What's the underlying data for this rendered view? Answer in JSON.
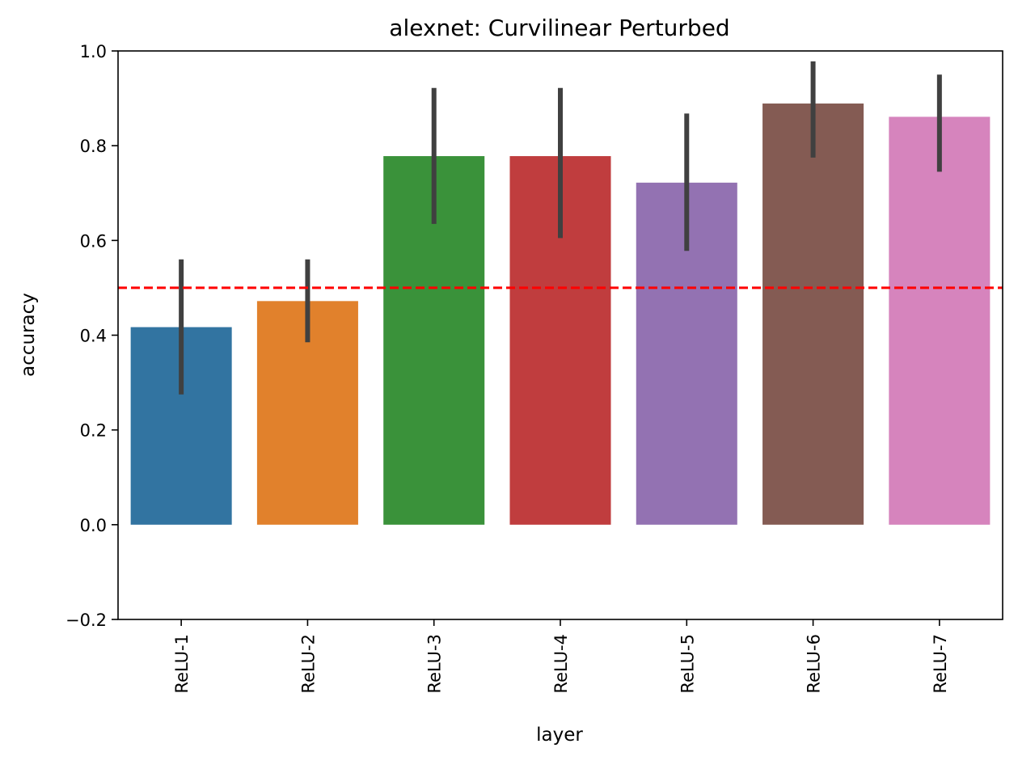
{
  "chart_data": {
    "type": "bar",
    "title": "alexnet: Curvilinear Perturbed",
    "xlabel": "layer",
    "ylabel": "accuracy",
    "ylim": [
      -0.2,
      1.0
    ],
    "yticks": [
      "−0.2",
      "0.0",
      "0.2",
      "0.4",
      "0.6",
      "0.8",
      "1.0"
    ],
    "categories": [
      "ReLU-1",
      "ReLU-2",
      "ReLU-3",
      "ReLU-4",
      "ReLU-5",
      "ReLU-6",
      "ReLU-7"
    ],
    "values": [
      0.417,
      0.472,
      0.778,
      0.778,
      0.722,
      0.889,
      0.861
    ],
    "error_low": [
      0.275,
      0.385,
      0.635,
      0.605,
      0.578,
      0.775,
      0.745
    ],
    "error_high": [
      0.56,
      0.56,
      0.922,
      0.922,
      0.868,
      0.978,
      0.95
    ],
    "colors": [
      "#3274a1",
      "#e1812c",
      "#3a923a",
      "#c03d3e",
      "#9372b2",
      "#845b53",
      "#d684bd"
    ],
    "error_color": "#404040",
    "reference_line": {
      "y": 0.5,
      "color": "#ff0000",
      "style": "dashed"
    },
    "grid": false,
    "legend": "none"
  }
}
